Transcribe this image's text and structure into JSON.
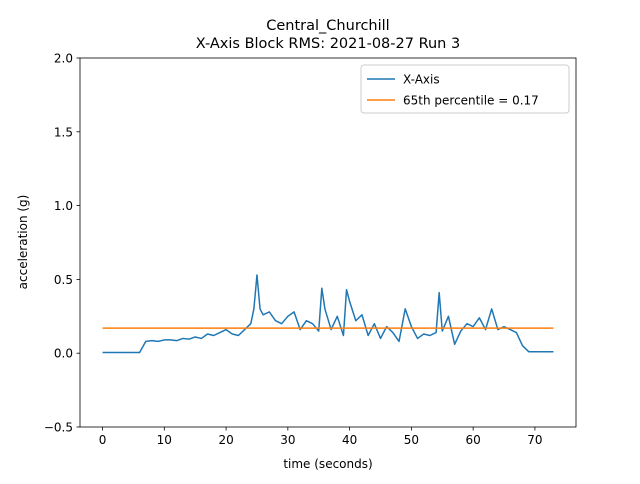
{
  "chart_data": {
    "type": "line",
    "title": "Central_Churchill",
    "subtitle": "X-Axis Block RMS: 2021-08-27 Run 3",
    "xlabel": "time (seconds)",
    "ylabel": "acceleration (g)",
    "xlim": [
      -3.65,
      76.65
    ],
    "ylim": [
      -0.5,
      2.0
    ],
    "xticks": [
      0,
      10,
      20,
      30,
      40,
      50,
      60,
      70
    ],
    "yticks": [
      {
        "value": -0.5,
        "label": "−0.5"
      },
      {
        "value": 0,
        "label": "0.0"
      },
      0.5,
      {
        "value": 1,
        "label": "1.0"
      },
      1.5,
      {
        "value": 2,
        "label": "2.0"
      }
    ],
    "legend": "upper right",
    "series": [
      {
        "name": "X-Axis",
        "color": "#1f77b4",
        "x": [
          0,
          1,
          2,
          3,
          4,
          5,
          6,
          7,
          8,
          9,
          10,
          11,
          12,
          13,
          14,
          15,
          16,
          17,
          18,
          19,
          20,
          21,
          22,
          23,
          24,
          24.5,
          25,
          25.5,
          26,
          27,
          28,
          29,
          30,
          31,
          32,
          33,
          34,
          35,
          35.5,
          36,
          37,
          38,
          39,
          39.5,
          40,
          41,
          42,
          43,
          44,
          45,
          46,
          47,
          48,
          49,
          50,
          51,
          52,
          53,
          54,
          54.5,
          55,
          56,
          57,
          58,
          59,
          60,
          61,
          62,
          63,
          64,
          65,
          66,
          67,
          68,
          69,
          70,
          71,
          72,
          73
        ],
        "values": [
          0.005,
          0.005,
          0.005,
          0.005,
          0.005,
          0.005,
          0.005,
          0.08,
          0.085,
          0.08,
          0.09,
          0.09,
          0.085,
          0.1,
          0.095,
          0.11,
          0.1,
          0.13,
          0.12,
          0.14,
          0.16,
          0.13,
          0.12,
          0.16,
          0.2,
          0.3,
          0.53,
          0.3,
          0.26,
          0.28,
          0.22,
          0.2,
          0.25,
          0.28,
          0.16,
          0.22,
          0.2,
          0.15,
          0.44,
          0.3,
          0.16,
          0.25,
          0.12,
          0.43,
          0.35,
          0.22,
          0.26,
          0.12,
          0.2,
          0.1,
          0.18,
          0.14,
          0.08,
          0.3,
          0.18,
          0.1,
          0.13,
          0.12,
          0.14,
          0.41,
          0.15,
          0.25,
          0.06,
          0.15,
          0.2,
          0.18,
          0.24,
          0.16,
          0.3,
          0.16,
          0.18,
          0.16,
          0.14,
          0.05,
          0.01,
          0.01,
          0.01,
          0.01,
          0.01
        ]
      },
      {
        "name": "65th percentile = 0.17",
        "color": "#ff7f0e",
        "x": [
          0,
          73
        ],
        "values": [
          0.17,
          0.17
        ]
      }
    ]
  }
}
